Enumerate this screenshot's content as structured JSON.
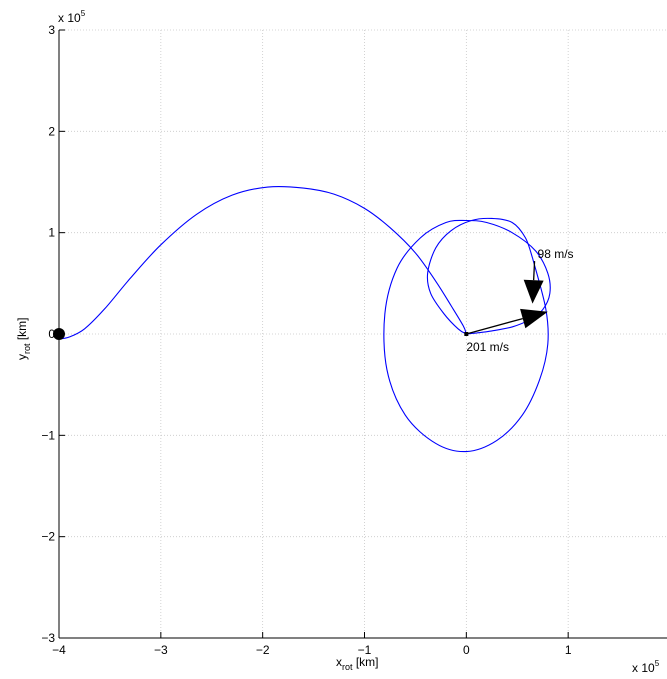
{
  "chart_data": {
    "type": "line",
    "xlabel": {
      "main": "x",
      "sub": "rot",
      "unit": " [km]"
    },
    "ylabel": {
      "main": "y",
      "sub": "rot",
      "unit": " [km]"
    },
    "x_multiplier": {
      "base": "x 10",
      "exp": "5"
    },
    "y_multiplier": {
      "base": "x 10",
      "exp": "5"
    },
    "xlim": [
      -400000,
      200000
    ],
    "ylim": [
      -300000,
      300000
    ],
    "xticks": [
      -400000,
      -300000,
      -200000,
      -100000,
      0,
      100000,
      200000
    ],
    "yticks": [
      -300000,
      -200000,
      -100000,
      0,
      100000,
      200000,
      300000
    ],
    "xtick_labels": [
      "−4",
      "−3",
      "−2",
      "−1",
      "0",
      "1",
      "2"
    ],
    "ytick_labels": [
      "−3",
      "−2",
      "−1",
      "0",
      "1",
      "2",
      "3"
    ],
    "grid": true,
    "line_color": "#0000ff",
    "series": [
      {
        "x": [
          -400000,
          -390000,
          -375000,
          -355000,
          -330000,
          -300000,
          -265000,
          -230000,
          -195000,
          -160000,
          -130000,
          -100000,
          -75000,
          -50000,
          -30000,
          -15000,
          -3000,
          0
        ],
        "y": [
          -5000,
          -3000,
          5000,
          25000,
          55000,
          88000,
          118000,
          137000,
          145000,
          144000,
          138000,
          124000,
          105000,
          80000,
          52000,
          28000,
          8000,
          0
        ]
      },
      {
        "x": [
          0,
          10000,
          25000,
          45000,
          62000,
          75000,
          82000,
          80000,
          68000,
          45000,
          20000,
          0,
          -20000,
          -45000,
          -68000,
          -80000,
          -78000,
          -60000,
          -30000,
          0,
          30000,
          55000,
          72000,
          80000,
          78000,
          65000
        ],
        "y": [
          0,
          1000,
          3000,
          7000,
          14000,
          24000,
          40000,
          60000,
          82000,
          100000,
          110000,
          112000,
          110000,
          95000,
          65000,
          20000,
          -35000,
          -80000,
          -108000,
          -116000,
          -105000,
          -80000,
          -45000,
          -10000,
          25000,
          75000
        ]
      },
      {
        "x": [
          65000,
          58000,
          45000,
          25000,
          5000,
          -15000,
          -30000,
          -38000,
          -35000,
          -22000,
          -8000,
          0
        ],
        "y": [
          75000,
          95000,
          110000,
          114000,
          112000,
          102000,
          85000,
          60000,
          40000,
          20000,
          5000,
          0
        ]
      }
    ],
    "start_marker": {
      "x": -400000,
      "y": 0
    },
    "end_marker": {
      "x": 0,
      "y": 0
    },
    "arrows": [
      {
        "from": [
          0,
          0
        ],
        "to": [
          80000,
          22000
        ],
        "label": "201 m/s"
      },
      {
        "from": [
          67000,
          72000
        ],
        "to": [
          65000,
          30000
        ],
        "label": "98 m/s"
      }
    ]
  }
}
